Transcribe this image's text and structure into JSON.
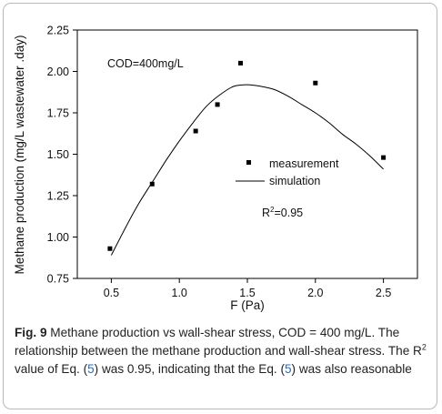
{
  "chart_data": {
    "type": "scatter",
    "xlabel": "F (Pa)",
    "ylabel": "Methane production (mg/L wastewater .day)",
    "xlim": [
      0.25,
      2.75
    ],
    "ylim": [
      0.75,
      2.25
    ],
    "xticks": [
      0.5,
      1.0,
      1.5,
      2.0,
      2.5
    ],
    "xtick_labels": [
      "0.5",
      "1.0",
      "1.5",
      "2.0",
      "2.5"
    ],
    "yticks": [
      0.75,
      1.0,
      1.25,
      1.5,
      1.75,
      2.0,
      2.25
    ],
    "ytick_labels": [
      "0.75",
      "1.00",
      "1.25",
      "1.50",
      "1.75",
      "2.00",
      "2.25"
    ],
    "grid": false,
    "legend_position": "center-right",
    "series": [
      {
        "name": "measurement",
        "type": "scatter",
        "marker": "square",
        "color": "#000000",
        "x": [
          0.49,
          0.8,
          1.12,
          1.28,
          1.45,
          2.0,
          2.5
        ],
        "y": [
          0.93,
          1.32,
          1.64,
          1.8,
          2.05,
          1.93,
          1.48
        ]
      },
      {
        "name": "simulation",
        "type": "line",
        "color": "#000000",
        "x": [
          0.5,
          0.6,
          0.7,
          0.8,
          0.9,
          1.0,
          1.1,
          1.2,
          1.3,
          1.4,
          1.5,
          1.6,
          1.7,
          1.8,
          1.9,
          2.0,
          2.1,
          2.2,
          2.3,
          2.4,
          2.5
        ],
        "y": [
          0.89,
          1.05,
          1.2,
          1.33,
          1.46,
          1.58,
          1.69,
          1.79,
          1.86,
          1.91,
          1.92,
          1.91,
          1.89,
          1.85,
          1.8,
          1.75,
          1.69,
          1.62,
          1.56,
          1.49,
          1.41
        ]
      }
    ],
    "annotations": {
      "cod": "COD=400mg/L",
      "r2_prefix": "R",
      "r2_sup": "2",
      "r2_suffix": "=0.95"
    }
  },
  "caption": {
    "label": "Fig. 9",
    "part1": "  Methane production vs wall-shear stress, COD = 400 mg/L. The relationship between the methane production and wall-shear stress. The R",
    "sup": "2",
    "part2": " value of Eq. (",
    "ref1": "5",
    "part3": ") was 0.95, indicating that the Eq. (",
    "ref2": "5",
    "part4": ") was also reasonable"
  }
}
